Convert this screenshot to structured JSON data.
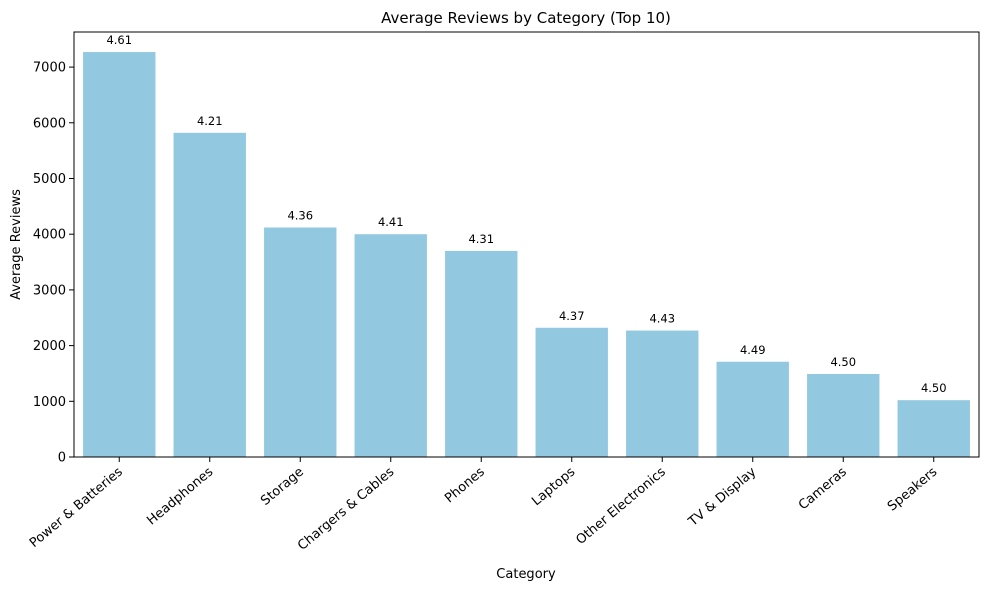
{
  "chart_data": {
    "type": "bar",
    "title": "Average Reviews by Category (Top 10)",
    "xlabel": "Category",
    "ylabel": "Average Reviews",
    "categories": [
      "Power & Batteries",
      "Headphones",
      "Storage",
      "Chargers & Cables",
      "Phones",
      "Laptops",
      "Other Electronics",
      "TV & Display",
      "Cameras",
      "Speakers"
    ],
    "values": [
      7270,
      5820,
      4120,
      4000,
      3700,
      2320,
      2270,
      1710,
      1490,
      1020
    ],
    "data_labels": [
      "4.61",
      "4.21",
      "4.36",
      "4.41",
      "4.31",
      "4.37",
      "4.43",
      "4.49",
      "4.50",
      "4.50"
    ],
    "yticks": [
      0,
      1000,
      2000,
      3000,
      4000,
      5000,
      6000,
      7000
    ],
    "ylim": [
      0,
      7630
    ],
    "grid": false,
    "bar_color": "#92c9e0"
  }
}
